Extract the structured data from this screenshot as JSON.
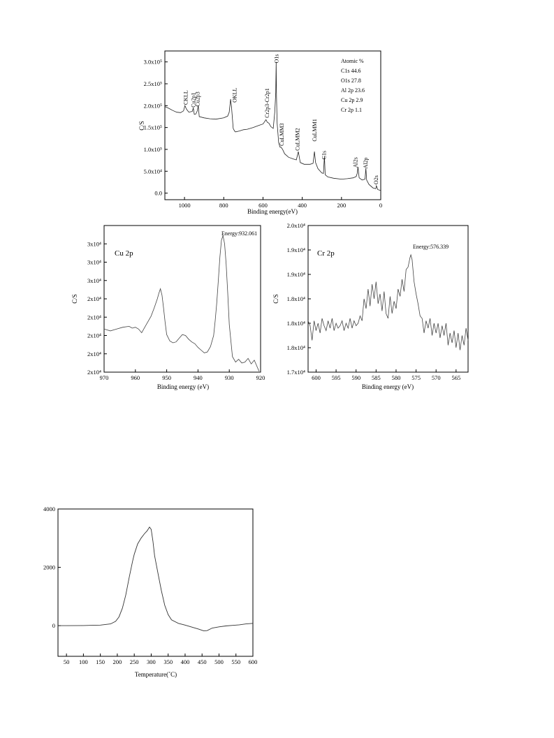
{
  "chart_data": [
    {
      "type": "line",
      "xlabel": "Binding energy(eV)",
      "ylabel": "C/S",
      "xlim": [
        1100,
        0
      ],
      "ylim": [
        -150000,
        3250000
      ],
      "x_reversed": true,
      "xticks": [
        1000,
        800,
        600,
        400,
        200,
        0
      ],
      "yticks": [
        {
          "v": 0,
          "label": "0.0"
        },
        {
          "v": 500000,
          "label": "5.0x10⁴"
        },
        {
          "v": 1000000,
          "label": "1.0x10⁵"
        },
        {
          "v": 1500000,
          "label": "1.5x10⁵"
        },
        {
          "v": 2000000,
          "label": "2.0x10⁵"
        },
        {
          "v": 2500000,
          "label": "2.5x10⁵"
        },
        {
          "v": 3000000,
          "label": "3.0x10⁵"
        }
      ],
      "composition": {
        "title": "Atomic %",
        "rows": [
          "C1s 44.6",
          "O1s 27.8",
          "Al 2p 23.6",
          "Cu 2p 2.9",
          "Cr 2p 1.1"
        ]
      },
      "peak_labels": [
        {
          "text": "CKLL",
          "x": 995,
          "y": 2020000
        },
        {
          "text": "Cu2p1",
          "x": 955,
          "y": 1960000
        },
        {
          "text": "Cu2p3",
          "x": 935,
          "y": 1980000
        },
        {
          "text": "OKLL",
          "x": 745,
          "y": 2070000
        },
        {
          "text": "Cr2p3-Cr2p1",
          "x": 580,
          "y": 1720000
        },
        {
          "text": "O1s",
          "x": 532,
          "y": 2970000
        },
        {
          "text": "CuLMM3",
          "x": 505,
          "y": 1080000
        },
        {
          "text": "CuLMM2",
          "x": 425,
          "y": 970000
        },
        {
          "text": "CuLMM1",
          "x": 338,
          "y": 1180000
        },
        {
          "text": "C1s",
          "x": 290,
          "y": 770000
        },
        {
          "text": "Al2s",
          "x": 130,
          "y": 580000
        },
        {
          "text": "Al2p",
          "x": 78,
          "y": 560000
        },
        {
          "text": "O2s",
          "x": 24,
          "y": 200000
        }
      ],
      "series": [
        {
          "x": [
            1100,
            1080,
            1060,
            1040,
            1020,
            1005,
            998,
            990,
            978,
            970,
            960,
            955,
            950,
            942,
            935,
            930,
            925,
            900,
            870,
            840,
            800,
            780,
            772,
            765,
            760,
            752,
            745,
            740,
            720,
            700,
            680,
            650,
            620,
            600,
            585,
            578,
            570,
            560,
            548,
            540,
            535,
            533,
            531,
            528,
            520,
            513,
            508,
            500,
            490,
            470,
            445,
            430,
            420,
            410,
            390,
            360,
            345,
            338,
            332,
            320,
            300,
            292,
            287,
            283,
            270,
            240,
            200,
            170,
            140,
            125,
            120,
            116,
            110,
            95,
            80,
            76,
            72,
            60,
            40,
            25,
            22,
            15,
            0
          ],
          "y": [
            1980000,
            1940000,
            1890000,
            1850000,
            1840000,
            1880000,
            2000000,
            1920000,
            1850000,
            1860000,
            1870000,
            1950000,
            1800000,
            1810000,
            1880000,
            2000000,
            1750000,
            1720000,
            1700000,
            1690000,
            1720000,
            1760000,
            1850000,
            2150000,
            1950000,
            1480000,
            1420000,
            1400000,
            1420000,
            1450000,
            1460000,
            1500000,
            1550000,
            1580000,
            1680000,
            1620000,
            1600000,
            1520000,
            1480000,
            1850000,
            2300000,
            3000000,
            2200000,
            1600000,
            1150000,
            1050000,
            1050000,
            1000000,
            900000,
            820000,
            780000,
            760000,
            950000,
            700000,
            660000,
            660000,
            680000,
            950000,
            700000,
            560000,
            460000,
            450000,
            850000,
            420000,
            370000,
            340000,
            320000,
            330000,
            350000,
            380000,
            450000,
            600000,
            350000,
            300000,
            320000,
            570000,
            300000,
            200000,
            120000,
            100000,
            170000,
            80000,
            60000
          ]
        }
      ]
    },
    {
      "type": "line",
      "title": "Cu 2p",
      "xlabel": "Binding energy (eV)",
      "ylabel": "C/S",
      "xlim": [
        970,
        920
      ],
      "ylim": [
        0,
        8
      ],
      "x_reversed": true,
      "xticks": [
        970,
        960,
        950,
        940,
        930,
        920
      ],
      "ytick_labels": [
        "2x10⁴",
        "2x10⁴",
        "2x10⁴",
        "2x10⁴",
        "2x10⁴",
        "3x10⁴",
        "3x10⁴",
        "3x10⁴"
      ],
      "annotation": "Energy:932.061",
      "series": [
        {
          "x": [
            970,
            968,
            966,
            964,
            962,
            961,
            960,
            959,
            958,
            957,
            956,
            955,
            954,
            953,
            952.5,
            952,
            951.5,
            951,
            950.5,
            950,
            949,
            948,
            947,
            946,
            945,
            944,
            943,
            942,
            941,
            940,
            939,
            938,
            937,
            936,
            935,
            934.5,
            934,
            933.5,
            933,
            932.5,
            932,
            931.5,
            931,
            930.5,
            930,
            929,
            928,
            927,
            926,
            925,
            924,
            923,
            922,
            921,
            920.5
          ],
          "y": [
            2.35,
            2.25,
            2.35,
            2.45,
            2.5,
            2.4,
            2.45,
            2.35,
            2.15,
            2.45,
            2.75,
            3.05,
            3.5,
            4.0,
            4.3,
            4.55,
            4.2,
            3.5,
            2.7,
            2.05,
            1.7,
            1.6,
            1.65,
            1.85,
            2.05,
            2.0,
            1.8,
            1.65,
            1.55,
            1.35,
            1.2,
            1.05,
            1.1,
            1.4,
            2.0,
            2.8,
            3.8,
            5.0,
            6.3,
            7.2,
            7.45,
            7.0,
            5.9,
            4.3,
            2.6,
            0.85,
            0.55,
            0.7,
            0.5,
            0.55,
            0.75,
            0.45,
            0.65,
            0.25,
            0.05
          ]
        }
      ]
    },
    {
      "type": "line",
      "title": "Cr 2p",
      "xlabel": "Binding energy (eV)",
      "ylabel": "C/S",
      "xlim": [
        602,
        562
      ],
      "ylim": [
        17000,
        20000
      ],
      "x_reversed": true,
      "xticks": [
        600,
        595,
        590,
        585,
        580,
        575,
        570,
        565
      ],
      "yticks": [
        {
          "v": 17000,
          "label": "1.7x10⁴"
        },
        {
          "v": 17500,
          "label": "1.8x10⁴"
        },
        {
          "v": 18000,
          "label": "1.8x10⁴"
        },
        {
          "v": 18500,
          "label": "1.8x10⁴"
        },
        {
          "v": 19000,
          "label": "1.9x10⁴"
        },
        {
          "v": 19500,
          "label": "1.9x10⁴"
        },
        {
          "v": 20000,
          "label": "2.0x10⁴"
        }
      ],
      "annotation": "Energy:576.339",
      "series": [
        {
          "x": [
            602,
            601.5,
            601,
            600.5,
            600,
            599.5,
            599,
            598.5,
            598,
            597.5,
            597,
            596.5,
            596,
            595.5,
            595,
            594.5,
            594,
            593.5,
            593,
            592.5,
            592,
            591.5,
            591,
            590.5,
            590,
            589.5,
            589,
            588.5,
            588,
            587.5,
            587,
            586.5,
            586,
            585.5,
            585,
            584.5,
            584,
            583.5,
            583,
            582.5,
            582,
            581.5,
            581,
            580.5,
            580,
            579.5,
            579,
            578.5,
            578,
            577.5,
            577,
            576.5,
            576.3,
            576,
            575.5,
            575,
            574.5,
            574,
            573.5,
            573,
            572.5,
            572,
            571.5,
            571,
            570.5,
            570,
            569.5,
            569,
            568.5,
            568,
            567.5,
            567,
            566.5,
            566,
            565.5,
            565,
            564.5,
            564,
            563.5,
            563,
            562.5,
            562
          ],
          "y": [
            18050,
            17950,
            17650,
            18050,
            17850,
            18000,
            17800,
            18100,
            17950,
            17850,
            18050,
            17900,
            18100,
            17850,
            18000,
            17900,
            17950,
            18050,
            17850,
            18000,
            17900,
            18100,
            17900,
            18050,
            17950,
            18000,
            18150,
            18050,
            18500,
            18300,
            18700,
            18350,
            18800,
            18500,
            18850,
            18400,
            18600,
            18250,
            18650,
            18200,
            18100,
            18550,
            18200,
            18450,
            18300,
            18700,
            18550,
            18900,
            18650,
            19100,
            19150,
            19350,
            19400,
            19300,
            18850,
            18600,
            18400,
            18150,
            18100,
            17800,
            18050,
            17900,
            18100,
            17750,
            18000,
            17800,
            18000,
            17700,
            17950,
            17750,
            18000,
            17550,
            17800,
            17600,
            17850,
            17500,
            17800,
            17450,
            17750,
            17550,
            17900,
            17650
          ]
        }
      ]
    },
    {
      "type": "line",
      "xlabel": "Temperature(˚C)",
      "xlim": [
        25,
        600
      ],
      "ylim": [
        -1050,
        4000
      ],
      "xticks": [
        50,
        100,
        150,
        200,
        250,
        300,
        350,
        400,
        450,
        500,
        550,
        600
      ],
      "yticks": [
        0,
        2000,
        4000
      ],
      "series": [
        {
          "x": [
            25,
            50,
            100,
            150,
            180,
            195,
            205,
            215,
            225,
            235,
            245,
            250,
            260,
            270,
            280,
            288,
            295,
            300,
            305,
            310,
            320,
            330,
            340,
            350,
            360,
            380,
            400,
            420,
            440,
            455,
            465,
            480,
            500,
            520,
            540,
            560,
            580,
            600
          ],
          "y": [
            0,
            0,
            5,
            20,
            60,
            150,
            300,
            600,
            1050,
            1650,
            2200,
            2450,
            2800,
            3000,
            3150,
            3250,
            3380,
            3300,
            2900,
            2400,
            1800,
            1200,
            700,
            380,
            200,
            80,
            20,
            -50,
            -120,
            -180,
            -170,
            -80,
            -40,
            -10,
            10,
            30,
            60,
            80
          ]
        }
      ]
    }
  ]
}
